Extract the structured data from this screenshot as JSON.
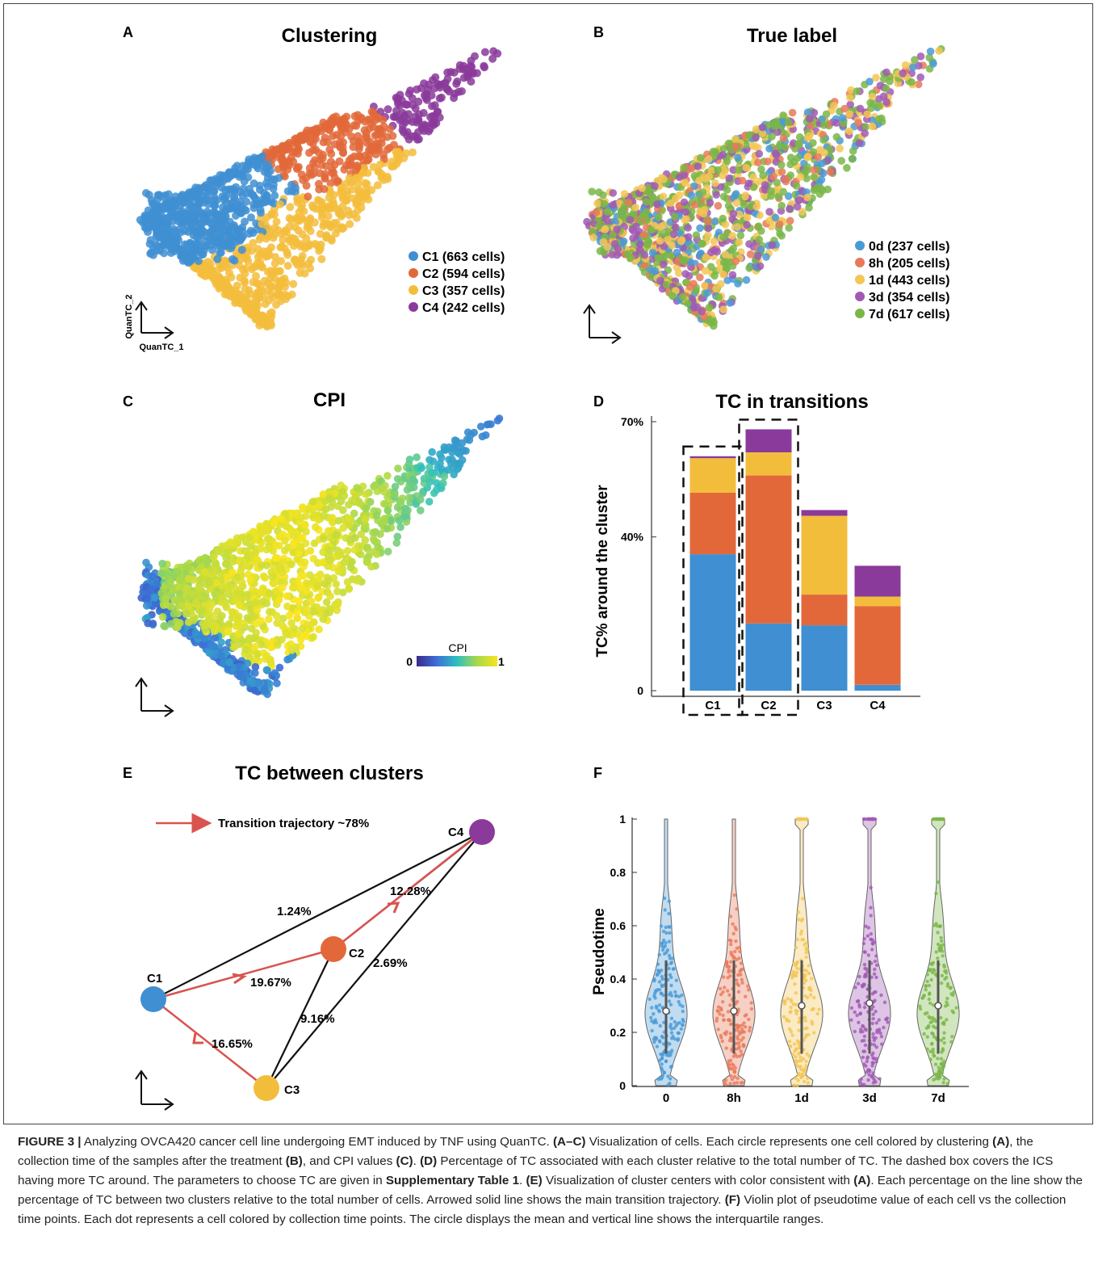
{
  "panels": {
    "A": {
      "letter": "A",
      "title": "Clustering",
      "x_axis": "QuanTC_1",
      "y_axis": "QuanTC_2",
      "legend": [
        {
          "label": "C1 (663 cells)",
          "color": "#3f8fd2"
        },
        {
          "label": "C2 (594 cells)",
          "color": "#e2683a"
        },
        {
          "label": "C3 (357 cells)",
          "color": "#f3bd3c"
        },
        {
          "label": "C4 (242 cells)",
          "color": "#8a3a9a"
        }
      ]
    },
    "B": {
      "letter": "B",
      "title": "True label",
      "legend": [
        {
          "label": "0d (237 cells)",
          "color": "#4a9ad6"
        },
        {
          "label": "8h (205 cells)",
          "color": "#e8795a"
        },
        {
          "label": "1d (443 cells)",
          "color": "#f3c655"
        },
        {
          "label": "3d (354 cells)",
          "color": "#a05ab4"
        },
        {
          "label": "7d (617 cells)",
          "color": "#7ab648"
        }
      ]
    },
    "C": {
      "letter": "C",
      "title": "CPI",
      "colorbar_label": "CPI",
      "colorbar_min": "0",
      "colorbar_max": "1"
    },
    "D": {
      "letter": "D",
      "title": "TC in transitions"
    },
    "E": {
      "letter": "E",
      "title": "TC between clusters",
      "legend_label": "Transition trajectory ~78%",
      "nodes": [
        {
          "name": "C1",
          "color": "#3f8fd2"
        },
        {
          "name": "C2",
          "color": "#e2683a"
        },
        {
          "name": "C3",
          "color": "#f3bd3c"
        },
        {
          "name": "C4",
          "color": "#8a3a9a"
        }
      ],
      "edge_labels": {
        "c1_c4": "1.24%",
        "c2_c4": "12.28%",
        "c1_c2": "19.67%",
        "c3_c4": "2.69%",
        "c2_c3": "9.16%",
        "c3_c1": "16.65%"
      }
    },
    "F": {
      "letter": "F"
    }
  },
  "chart_data": [
    {
      "type": "bar",
      "title": "TC in transitions",
      "ylabel": "TC% around the cluster",
      "xlabel": "",
      "ylim": [
        0,
        70
      ],
      "yticks": [
        {
          "value": 0,
          "label": "0"
        },
        {
          "value": 40,
          "label": "40%"
        },
        {
          "value": 70,
          "label": "70%"
        }
      ],
      "categories": [
        "C1",
        "C2",
        "C3",
        "C4"
      ],
      "stacked": true,
      "highlighted": [
        "C1",
        "C2"
      ],
      "series": [
        {
          "color": "#3f8fd2",
          "values": [
            35.5,
            17.5,
            17,
            1.5
          ]
        },
        {
          "color": "#e2683a",
          "values": [
            16,
            38.5,
            8,
            20.5
          ]
        },
        {
          "color": "#f3bd3c",
          "values": [
            9,
            6,
            20.5,
            2.5
          ]
        },
        {
          "color": "#8a3a9a",
          "values": [
            0.5,
            6,
            1.5,
            8
          ]
        }
      ]
    },
    {
      "type": "violin",
      "ylabel": "Pseudotime",
      "xlabel": "",
      "ylim": [
        0,
        1
      ],
      "yticks": [
        0,
        0.2,
        0.4,
        0.6,
        0.8,
        1
      ],
      "categories": [
        "0",
        "8h",
        "1d",
        "3d",
        "7d"
      ],
      "colors": [
        "#4a9ad6",
        "#e8795a",
        "#f3c655",
        "#a05ab4",
        "#7ab648"
      ],
      "means": [
        0.28,
        0.28,
        0.3,
        0.31,
        0.3
      ]
    }
  ],
  "caption": {
    "label": "FIGURE 3 |",
    "parts": [
      {
        "t": " Analyzing OVCA420 cancer cell line undergoing EMT induced by TNF using QuanTC. ",
        "b": false
      },
      {
        "t": "(A–C)",
        "b": true
      },
      {
        "t": " Visualization of cells. Each circle represents one cell colored by clustering ",
        "b": false
      },
      {
        "t": "(A)",
        "b": true
      },
      {
        "t": ", the collection time of the samples after the treatment ",
        "b": false
      },
      {
        "t": "(B)",
        "b": true
      },
      {
        "t": ", and CPI values ",
        "b": false
      },
      {
        "t": "(C)",
        "b": true
      },
      {
        "t": ". ",
        "b": false
      },
      {
        "t": "(D)",
        "b": true
      },
      {
        "t": " Percentage of TC associated with each cluster relative to the total number of TC. The dashed box covers the ICS having more TC around. The parameters to choose TC are given in ",
        "b": false
      },
      {
        "t": "Supplementary Table 1",
        "b": true
      },
      {
        "t": ". ",
        "b": false
      },
      {
        "t": "(E)",
        "b": true
      },
      {
        "t": " Visualization of cluster centers with color consistent with ",
        "b": false
      },
      {
        "t": "(A)",
        "b": true
      },
      {
        "t": ". Each percentage on the line show the percentage of TC between two clusters relative to the total number of cells. Arrowed solid line shows the main transition trajectory. ",
        "b": false
      },
      {
        "t": "(F)",
        "b": true
      },
      {
        "t": " Violin plot of pseudotime value of each cell vs the collection time points. Each dot represents a cell colored by collection time points. The circle displays the mean and vertical line shows the interquartile ranges.",
        "b": false
      }
    ]
  }
}
